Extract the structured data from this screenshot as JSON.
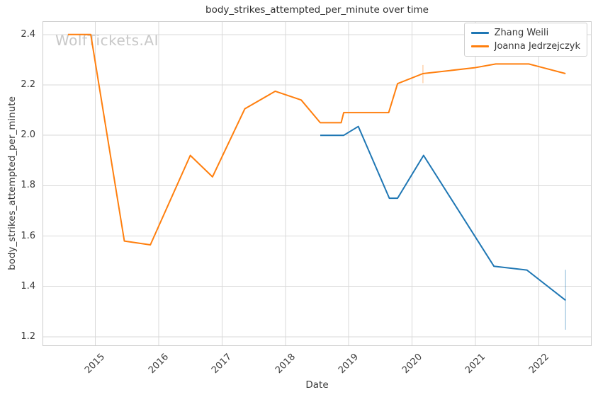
{
  "title": "body_strikes_attempted_per_minute over time",
  "watermark": "WolfTickets.AI",
  "axes": {
    "x_label": "Date",
    "y_label": "body_strikes_attempted_per_minute",
    "x_ticks": [
      2015,
      2016,
      2017,
      2018,
      2019,
      2020,
      2021,
      2022
    ],
    "y_ticks": [
      2.4,
      2.2,
      2.0,
      1.8,
      1.6,
      1.4,
      1.2
    ]
  },
  "colors": {
    "grid": "#d9d9d9",
    "spine": "#cccccc",
    "text": "#3a3a3a",
    "watermark": "#c8c8c8",
    "error_bar_opacity": 0.35
  },
  "chart_data": {
    "type": "line",
    "title": "body_strikes_attempted_per_minute over time",
    "xlabel": "Date",
    "ylabel": "body_strikes_attempted_per_minute",
    "xlim": [
      2014.18,
      2022.82
    ],
    "ylim": [
      1.166,
      2.45
    ],
    "grid": true,
    "legend_position": "upper right",
    "series": [
      {
        "name": "Zhang Weili",
        "color": "#1f77b4",
        "x": [
          2018.55,
          2018.92,
          2019.15,
          2019.64,
          2019.77,
          2020.18,
          2021.29,
          2021.81,
          2022.42
        ],
        "y": [
          2.0,
          2.0,
          2.035,
          1.75,
          1.75,
          1.92,
          1.48,
          1.465,
          1.345
        ],
        "error_bars": [
          {
            "x": 2022.42,
            "y_low": 1.228,
            "y_high": 1.466
          }
        ]
      },
      {
        "name": "Joanna Jedrzejczyk",
        "color": "#ff7f0e",
        "x": [
          2014.57,
          2014.93,
          2015.46,
          2015.87,
          2016.5,
          2016.85,
          2017.36,
          2017.84,
          2018.25,
          2018.55,
          2018.88,
          2018.92,
          2019.63,
          2019.77,
          2020.17,
          2020.98,
          2021.32,
          2021.84,
          2022.42
        ],
        "y": [
          2.4,
          2.4,
          1.58,
          1.565,
          1.92,
          1.835,
          2.105,
          2.175,
          2.14,
          2.05,
          2.05,
          2.09,
          2.09,
          2.205,
          2.245,
          2.268,
          2.283,
          2.283,
          2.245
        ],
        "error_bars": [
          {
            "x": 2020.17,
            "y_low": 2.207,
            "y_high": 2.279
          }
        ]
      }
    ]
  }
}
